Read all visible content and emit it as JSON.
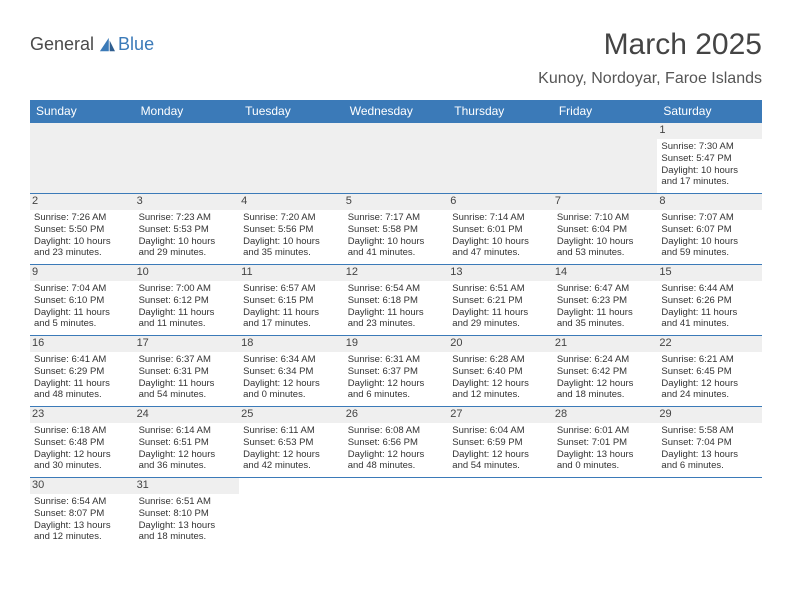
{
  "logo": {
    "general": "General",
    "blue": "Blue"
  },
  "title": "March 2025",
  "location": "Kunoy, Nordoyar, Faroe Islands",
  "colors": {
    "header_bg": "#3b7ab8",
    "header_text": "#ffffff",
    "week_border": "#3b7ab8",
    "daynum_bg": "#efefef",
    "empty_bg": "#efefef",
    "text": "#333333"
  },
  "typography": {
    "title_fontsize": 30,
    "location_fontsize": 16,
    "dayhead_fontsize": 12,
    "daynum_fontsize": 11,
    "cell_fontsize": 9.5
  },
  "day_headers": [
    "Sunday",
    "Monday",
    "Tuesday",
    "Wednesday",
    "Thursday",
    "Friday",
    "Saturday"
  ],
  "weeks": [
    [
      {
        "empty": true
      },
      {
        "empty": true
      },
      {
        "empty": true
      },
      {
        "empty": true
      },
      {
        "empty": true
      },
      {
        "empty": true
      },
      {
        "num": "1",
        "sunrise": "Sunrise: 7:30 AM",
        "sunset": "Sunset: 5:47 PM",
        "day1": "Daylight: 10 hours",
        "day2": "and 17 minutes."
      }
    ],
    [
      {
        "num": "2",
        "sunrise": "Sunrise: 7:26 AM",
        "sunset": "Sunset: 5:50 PM",
        "day1": "Daylight: 10 hours",
        "day2": "and 23 minutes."
      },
      {
        "num": "3",
        "sunrise": "Sunrise: 7:23 AM",
        "sunset": "Sunset: 5:53 PM",
        "day1": "Daylight: 10 hours",
        "day2": "and 29 minutes."
      },
      {
        "num": "4",
        "sunrise": "Sunrise: 7:20 AM",
        "sunset": "Sunset: 5:56 PM",
        "day1": "Daylight: 10 hours",
        "day2": "and 35 minutes."
      },
      {
        "num": "5",
        "sunrise": "Sunrise: 7:17 AM",
        "sunset": "Sunset: 5:58 PM",
        "day1": "Daylight: 10 hours",
        "day2": "and 41 minutes."
      },
      {
        "num": "6",
        "sunrise": "Sunrise: 7:14 AM",
        "sunset": "Sunset: 6:01 PM",
        "day1": "Daylight: 10 hours",
        "day2": "and 47 minutes."
      },
      {
        "num": "7",
        "sunrise": "Sunrise: 7:10 AM",
        "sunset": "Sunset: 6:04 PM",
        "day1": "Daylight: 10 hours",
        "day2": "and 53 minutes."
      },
      {
        "num": "8",
        "sunrise": "Sunrise: 7:07 AM",
        "sunset": "Sunset: 6:07 PM",
        "day1": "Daylight: 10 hours",
        "day2": "and 59 minutes."
      }
    ],
    [
      {
        "num": "9",
        "sunrise": "Sunrise: 7:04 AM",
        "sunset": "Sunset: 6:10 PM",
        "day1": "Daylight: 11 hours",
        "day2": "and 5 minutes."
      },
      {
        "num": "10",
        "sunrise": "Sunrise: 7:00 AM",
        "sunset": "Sunset: 6:12 PM",
        "day1": "Daylight: 11 hours",
        "day2": "and 11 minutes."
      },
      {
        "num": "11",
        "sunrise": "Sunrise: 6:57 AM",
        "sunset": "Sunset: 6:15 PM",
        "day1": "Daylight: 11 hours",
        "day2": "and 17 minutes."
      },
      {
        "num": "12",
        "sunrise": "Sunrise: 6:54 AM",
        "sunset": "Sunset: 6:18 PM",
        "day1": "Daylight: 11 hours",
        "day2": "and 23 minutes."
      },
      {
        "num": "13",
        "sunrise": "Sunrise: 6:51 AM",
        "sunset": "Sunset: 6:21 PM",
        "day1": "Daylight: 11 hours",
        "day2": "and 29 minutes."
      },
      {
        "num": "14",
        "sunrise": "Sunrise: 6:47 AM",
        "sunset": "Sunset: 6:23 PM",
        "day1": "Daylight: 11 hours",
        "day2": "and 35 minutes."
      },
      {
        "num": "15",
        "sunrise": "Sunrise: 6:44 AM",
        "sunset": "Sunset: 6:26 PM",
        "day1": "Daylight: 11 hours",
        "day2": "and 41 minutes."
      }
    ],
    [
      {
        "num": "16",
        "sunrise": "Sunrise: 6:41 AM",
        "sunset": "Sunset: 6:29 PM",
        "day1": "Daylight: 11 hours",
        "day2": "and 48 minutes."
      },
      {
        "num": "17",
        "sunrise": "Sunrise: 6:37 AM",
        "sunset": "Sunset: 6:31 PM",
        "day1": "Daylight: 11 hours",
        "day2": "and 54 minutes."
      },
      {
        "num": "18",
        "sunrise": "Sunrise: 6:34 AM",
        "sunset": "Sunset: 6:34 PM",
        "day1": "Daylight: 12 hours",
        "day2": "and 0 minutes."
      },
      {
        "num": "19",
        "sunrise": "Sunrise: 6:31 AM",
        "sunset": "Sunset: 6:37 PM",
        "day1": "Daylight: 12 hours",
        "day2": "and 6 minutes."
      },
      {
        "num": "20",
        "sunrise": "Sunrise: 6:28 AM",
        "sunset": "Sunset: 6:40 PM",
        "day1": "Daylight: 12 hours",
        "day2": "and 12 minutes."
      },
      {
        "num": "21",
        "sunrise": "Sunrise: 6:24 AM",
        "sunset": "Sunset: 6:42 PM",
        "day1": "Daylight: 12 hours",
        "day2": "and 18 minutes."
      },
      {
        "num": "22",
        "sunrise": "Sunrise: 6:21 AM",
        "sunset": "Sunset: 6:45 PM",
        "day1": "Daylight: 12 hours",
        "day2": "and 24 minutes."
      }
    ],
    [
      {
        "num": "23",
        "sunrise": "Sunrise: 6:18 AM",
        "sunset": "Sunset: 6:48 PM",
        "day1": "Daylight: 12 hours",
        "day2": "and 30 minutes."
      },
      {
        "num": "24",
        "sunrise": "Sunrise: 6:14 AM",
        "sunset": "Sunset: 6:51 PM",
        "day1": "Daylight: 12 hours",
        "day2": "and 36 minutes."
      },
      {
        "num": "25",
        "sunrise": "Sunrise: 6:11 AM",
        "sunset": "Sunset: 6:53 PM",
        "day1": "Daylight: 12 hours",
        "day2": "and 42 minutes."
      },
      {
        "num": "26",
        "sunrise": "Sunrise: 6:08 AM",
        "sunset": "Sunset: 6:56 PM",
        "day1": "Daylight: 12 hours",
        "day2": "and 48 minutes."
      },
      {
        "num": "27",
        "sunrise": "Sunrise: 6:04 AM",
        "sunset": "Sunset: 6:59 PM",
        "day1": "Daylight: 12 hours",
        "day2": "and 54 minutes."
      },
      {
        "num": "28",
        "sunrise": "Sunrise: 6:01 AM",
        "sunset": "Sunset: 7:01 PM",
        "day1": "Daylight: 13 hours",
        "day2": "and 0 minutes."
      },
      {
        "num": "29",
        "sunrise": "Sunrise: 5:58 AM",
        "sunset": "Sunset: 7:04 PM",
        "day1": "Daylight: 13 hours",
        "day2": "and 6 minutes."
      }
    ],
    [
      {
        "num": "30",
        "sunrise": "Sunrise: 6:54 AM",
        "sunset": "Sunset: 8:07 PM",
        "day1": "Daylight: 13 hours",
        "day2": "and 12 minutes."
      },
      {
        "num": "31",
        "sunrise": "Sunrise: 6:51 AM",
        "sunset": "Sunset: 8:10 PM",
        "day1": "Daylight: 13 hours",
        "day2": "and 18 minutes."
      },
      {
        "empty": true
      },
      {
        "empty": true
      },
      {
        "empty": true
      },
      {
        "empty": true
      },
      {
        "empty": true
      }
    ]
  ]
}
